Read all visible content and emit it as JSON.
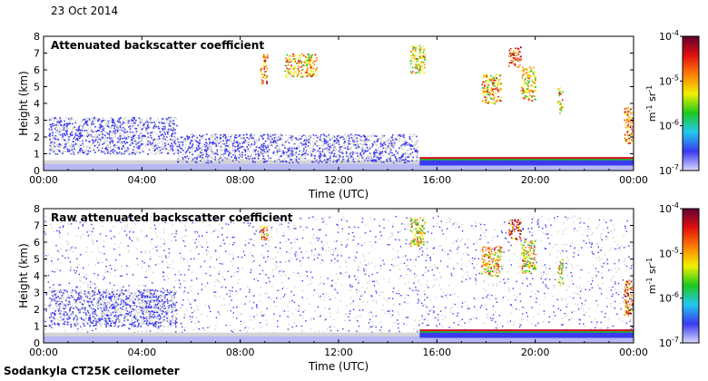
{
  "header": {
    "date": "23 Oct 2014"
  },
  "footer": {
    "instrument": "Sodankyla CT25K ceilometer"
  },
  "chart_data": [
    {
      "type": "heatmap",
      "title": "Attenuated backscatter coefficient",
      "xlabel": "Time (UTC)",
      "ylabel": "Height (km)",
      "xticks": [
        "00:00",
        "04:00",
        "08:00",
        "12:00",
        "16:00",
        "20:00",
        "00:00"
      ],
      "xlim": [
        0,
        24
      ],
      "ylim": [
        0,
        8
      ],
      "yticks": [
        0,
        1,
        2,
        3,
        4,
        5,
        6,
        7,
        8
      ],
      "colorbar": {
        "scale": "log",
        "range": [
          1e-07,
          0.0001
        ],
        "tick_labels": [
          "10-7",
          "10-6",
          "10-5",
          "10-4"
        ],
        "unit": "m-1 sr-1",
        "colors": [
          "#d9d9ff",
          "#3a3af0",
          "#22c8f0",
          "#1ec81e",
          "#f0f000",
          "#ff8000",
          "#e01010",
          "#600030"
        ]
      },
      "features": [
        {
          "name": "boundary-layer",
          "t_start": 0,
          "t_end": 24,
          "h_bottom": 0,
          "h_top": 0.4,
          "level": 0.2
        },
        {
          "name": "low-cloud-column-morning",
          "t_start": 0.2,
          "t_end": 5.4,
          "h_bottom": 1.0,
          "h_top": 3.2,
          "level": 0.4
        },
        {
          "name": "low-cloud-column-day",
          "t_start": 5.4,
          "t_end": 15.2,
          "h_bottom": 0.5,
          "h_top": 2.2,
          "level": 0.35
        },
        {
          "name": "high-cloud-09h",
          "t_start": 8.8,
          "t_end": 9.1,
          "h_bottom": 5.2,
          "h_top": 7.0,
          "level": 0.75
        },
        {
          "name": "high-cloud-10h",
          "t_start": 9.8,
          "t_end": 11.1,
          "h_bottom": 5.6,
          "h_top": 7.0,
          "level": 0.65
        },
        {
          "name": "cloud-15h",
          "t_start": 14.9,
          "t_end": 15.5,
          "h_bottom": 5.8,
          "h_top": 7.5,
          "level": 0.6
        },
        {
          "name": "cloud-18h",
          "t_start": 17.8,
          "t_end": 18.6,
          "h_bottom": 4.0,
          "h_top": 5.8,
          "level": 0.65
        },
        {
          "name": "cloud-19h",
          "t_start": 18.9,
          "t_end": 19.4,
          "h_bottom": 6.2,
          "h_top": 7.4,
          "level": 0.85
        },
        {
          "name": "cloud-19h-low",
          "t_start": 19.4,
          "t_end": 20.0,
          "h_bottom": 4.2,
          "h_top": 6.2,
          "level": 0.6
        },
        {
          "name": "cloud-21h",
          "t_start": 20.9,
          "t_end": 21.1,
          "h_bottom": 3.4,
          "h_top": 5.0,
          "level": 0.6
        },
        {
          "name": "cloud-24h",
          "t_start": 23.6,
          "t_end": 24.0,
          "h_bottom": 1.6,
          "h_top": 3.8,
          "level": 0.75
        },
        {
          "name": "fog-layer-evening",
          "t_start": 15.3,
          "t_end": 24,
          "h_bottom": 0.3,
          "h_top": 0.8,
          "level": 0.85
        }
      ]
    },
    {
      "type": "heatmap",
      "title": "Raw attenuated backscatter coefficient",
      "xlabel": "Time (UTC)",
      "ylabel": "Height (km)",
      "xticks": [
        "00:00",
        "04:00",
        "08:00",
        "12:00",
        "16:00",
        "20:00",
        "00:00"
      ],
      "xlim": [
        0,
        24
      ],
      "ylim": [
        0,
        8
      ],
      "yticks": [
        0,
        1,
        2,
        3,
        4,
        5,
        6,
        7,
        8
      ],
      "colorbar": {
        "scale": "log",
        "range": [
          1e-07,
          0.0001
        ],
        "tick_labels": [
          "10-7",
          "10-6",
          "10-5",
          "10-4"
        ],
        "unit": "m-1 sr-1",
        "colors": [
          "#d9d9ff",
          "#3a3af0",
          "#22c8f0",
          "#1ec81e",
          "#f0f000",
          "#ff8000",
          "#e01010",
          "#600030"
        ]
      },
      "features": [
        {
          "name": "noise-background",
          "t_start": 0,
          "t_end": 24,
          "h_bottom": 0,
          "h_top": 7.6,
          "level": 0.1
        },
        {
          "name": "boundary-layer",
          "t_start": 0,
          "t_end": 24,
          "h_bottom": 0,
          "h_top": 0.4,
          "level": 0.2
        },
        {
          "name": "low-cloud-column-morning",
          "t_start": 0.2,
          "t_end": 5.4,
          "h_bottom": 1.0,
          "h_top": 3.2,
          "level": 0.4
        },
        {
          "name": "high-cloud-09h",
          "t_start": 8.8,
          "t_end": 9.1,
          "h_bottom": 6.2,
          "h_top": 7.0,
          "level": 0.7
        },
        {
          "name": "cloud-15h",
          "t_start": 14.9,
          "t_end": 15.5,
          "h_bottom": 5.8,
          "h_top": 7.5,
          "level": 0.6
        },
        {
          "name": "cloud-18h",
          "t_start": 17.8,
          "t_end": 18.6,
          "h_bottom": 4.0,
          "h_top": 5.8,
          "level": 0.65
        },
        {
          "name": "cloud-19h",
          "t_start": 18.9,
          "t_end": 19.4,
          "h_bottom": 6.2,
          "h_top": 7.4,
          "level": 0.8
        },
        {
          "name": "cloud-19h-low",
          "t_start": 19.4,
          "t_end": 20.0,
          "h_bottom": 4.2,
          "h_top": 6.2,
          "level": 0.6
        },
        {
          "name": "cloud-21h",
          "t_start": 20.9,
          "t_end": 21.1,
          "h_bottom": 3.4,
          "h_top": 5.0,
          "level": 0.6
        },
        {
          "name": "cloud-24h",
          "t_start": 23.6,
          "t_end": 24.0,
          "h_bottom": 1.6,
          "h_top": 3.8,
          "level": 0.75
        },
        {
          "name": "fog-layer-evening",
          "t_start": 15.3,
          "t_end": 24,
          "h_bottom": 0.3,
          "h_top": 0.8,
          "level": 0.85
        }
      ]
    }
  ]
}
